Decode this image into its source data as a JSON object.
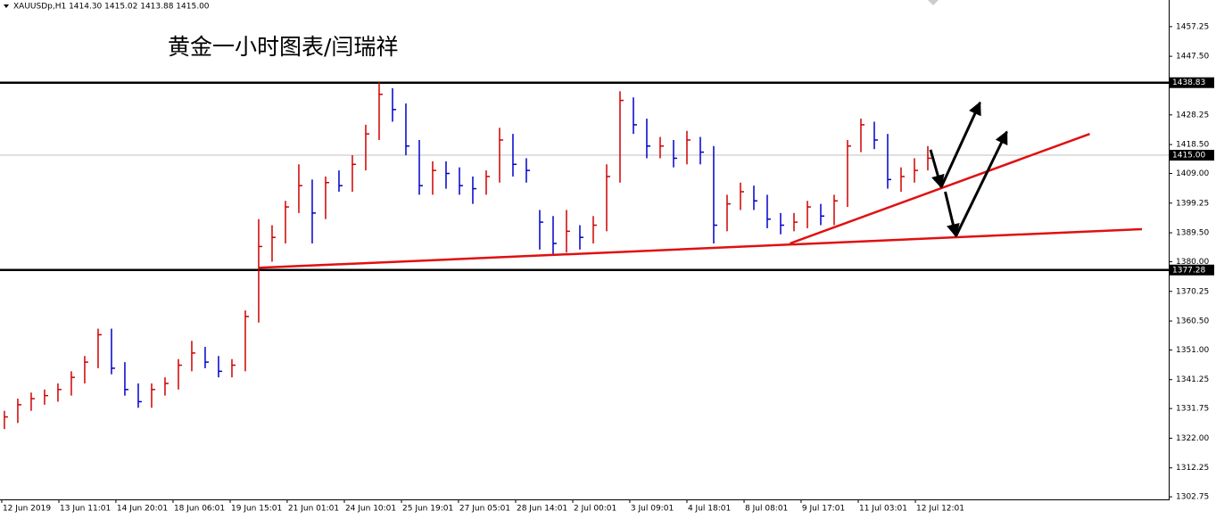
{
  "chart_data": {
    "type": "ohlc",
    "header": "XAUUSDp,H1  1414.30 1415.02 1413.88 1415.00",
    "title": "黄金一小时图表/闫瑞祥",
    "up_color": "#d00000",
    "down_color": "#0000cc",
    "high": [
      1331,
      1335,
      1337,
      1338,
      1340,
      1344,
      1349,
      1358,
      1358,
      1347,
      1340,
      1340,
      1342,
      1348,
      1354,
      1352,
      1349,
      1348,
      1364,
      1394,
      1392,
      1400,
      1412,
      1407,
      1408,
      1410,
      1415,
      1425,
      1439,
      1437,
      1432,
      1420,
      1413,
      1413,
      1411,
      1408,
      1410,
      1424,
      1422,
      1414,
      1397,
      1395,
      1397,
      1392,
      1395,
      1412,
      1436,
      1434,
      1427,
      1421,
      1420,
      1423,
      1421,
      1418,
      1402,
      1406,
      1405,
      1402,
      1396,
      1396,
      1400,
      1399,
      1402,
      1420,
      1427,
      1426,
      1422,
      1411,
      1414,
      1418
    ],
    "low": [
      1325,
      1327,
      1331,
      1333,
      1334,
      1336,
      1340,
      1345,
      1343,
      1336,
      1332,
      1332,
      1336,
      1338,
      1344,
      1345,
      1342,
      1342,
      1344,
      1360,
      1380,
      1386,
      1396,
      1386,
      1394,
      1403,
      1403,
      1410,
      1420,
      1426,
      1415,
      1402,
      1402,
      1404,
      1402,
      1399,
      1402,
      1406,
      1408,
      1406,
      1384,
      1382,
      1383,
      1384,
      1386,
      1390,
      1406,
      1422,
      1414,
      1414,
      1411,
      1412,
      1412,
      1386,
      1390,
      1397,
      1397,
      1391,
      1389,
      1390,
      1391,
      1392,
      1392,
      1398,
      1416,
      1417,
      1404,
      1403,
      1406,
      1410
    ],
    "close": [
      1329,
      1333,
      1335,
      1336,
      1338,
      1342,
      1347,
      1356,
      1345,
      1338,
      1334,
      1338,
      1340,
      1346,
      1350,
      1347,
      1344,
      1346,
      1362,
      1385,
      1388,
      1398,
      1405,
      1396,
      1406,
      1405,
      1412,
      1422,
      1435,
      1430,
      1418,
      1405,
      1410,
      1409,
      1405,
      1404,
      1408,
      1420,
      1412,
      1410,
      1393,
      1386,
      1390,
      1388,
      1392,
      1408,
      1433,
      1425,
      1418,
      1418,
      1414,
      1420,
      1416,
      1392,
      1399,
      1403,
      1400,
      1394,
      1392,
      1393,
      1398,
      1395,
      1400,
      1418,
      1425,
      1420,
      1407,
      1408,
      1410,
      1414
    ],
    "xlim": [
      -0.33,
      87
    ],
    "xticks": [
      {
        "value": -0.2,
        "label": "12 Jun 2019"
      },
      {
        "value": 4.07,
        "label": "13 Jun 11:01"
      },
      {
        "value": 8.33,
        "label": "14 Jun 20:01"
      },
      {
        "value": 12.6,
        "label": "18 Jun 06:01"
      },
      {
        "value": 16.87,
        "label": "19 Jun 15:01"
      },
      {
        "value": 21.13,
        "label": "21 Jun 01:01"
      },
      {
        "value": 25.4,
        "label": "24 Jun 10:01"
      },
      {
        "value": 29.67,
        "label": "25 Jun 19:01"
      },
      {
        "value": 33.93,
        "label": "27 Jun 05:01"
      },
      {
        "value": 38.2,
        "label": "28 Jun 14:01"
      },
      {
        "value": 42.47,
        "label": "2 Jul 00:01"
      },
      {
        "value": 46.73,
        "label": "3 Jul 09:01"
      },
      {
        "value": 51,
        "label": "4 Jul 18:01"
      },
      {
        "value": 55.27,
        "label": "8 Jul 08:01"
      },
      {
        "value": 59.53,
        "label": "9 Jul 17:01"
      },
      {
        "value": 63.8,
        "label": "11 Jul 03:01"
      },
      {
        "value": 68.07,
        "label": "12 Jul 12:01"
      }
    ],
    "ylim": [
      1301.9,
      1466.0
    ],
    "yticks": [
      1457.25,
      {
        "value": 1447.5,
        "label": "1447.50"
      },
      1428.25,
      {
        "value": 1418.5,
        "label": "1418.50"
      },
      {
        "value": 1409,
        "label": "1409.00"
      },
      1399.25,
      {
        "value": 1389.5,
        "label": "1389.50"
      },
      {
        "value": 1380,
        "label": "1380.00"
      },
      1370.25,
      {
        "value": 1360.5,
        "label": "1360.50"
      },
      {
        "value": 1351,
        "label": "1351.00"
      },
      1341.25,
      1331.75,
      {
        "value": 1322,
        "label": "1322.00"
      },
      1312.25,
      1302.75
    ],
    "levels": [
      {
        "value": 1438.83,
        "label": "1438.83",
        "color": "#000000"
      },
      {
        "value": 1377.28,
        "label": "1377.28",
        "color": "#000000"
      },
      {
        "value": 1415,
        "label": "1415.00",
        "color": "#c0c0c0"
      }
    ],
    "trendlines": [
      {
        "x": [
          19,
          85
        ],
        "y": [
          1378,
          1390.7
        ],
        "color": "#e01010"
      },
      {
        "x": [
          58.7,
          81.1
        ],
        "y": [
          1386,
          1422
        ],
        "color": "#e01010"
      }
    ],
    "arrows": [
      {
        "x": [
          69.2,
          70
        ],
        "y": [
          1416.8,
          1404.5
        ],
        "color": "#000000"
      },
      {
        "x": [
          70,
          72.9
        ],
        "y": [
          1404.5,
          1432.3
        ],
        "color": "#000000"
      },
      {
        "x": [
          70.3,
          71.1
        ],
        "y": [
          1403,
          1388.4
        ],
        "color": "#000000"
      },
      {
        "x": [
          71.1,
          74.9
        ],
        "y": [
          1388.4,
          1422.7
        ],
        "color": "#000000"
      }
    ]
  }
}
